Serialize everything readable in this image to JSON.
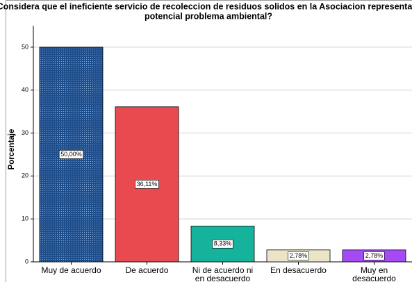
{
  "chart_data": {
    "type": "bar",
    "title": [
      "¿Considera que el ineficiente servicio de recoleccion de residuos solidos en la Asociacion representa un",
      "potencial problema ambiental?"
    ],
    "y_label": "Porcentaje",
    "categories": [
      "Muy de acuerdo",
      "De acuerdo",
      "Ni de acuerdo ni en desacuerdo",
      "En desacuerdo",
      "Muy en desacuerdo"
    ],
    "values": [
      50,
      36.11,
      8.33,
      2.78,
      2.78
    ],
    "value_labels": [
      "50,00%",
      "36,11%",
      "8,33%",
      "2,78%",
      "2,78%"
    ],
    "colors": [
      "#1f4e8c",
      "#e84a4f",
      "#16b39c",
      "#ece4c8",
      "#a64bf4"
    ],
    "ylim": [
      0,
      55
    ],
    "yticks": [
      0,
      10,
      20,
      30,
      40,
      50
    ],
    "grid": true
  }
}
